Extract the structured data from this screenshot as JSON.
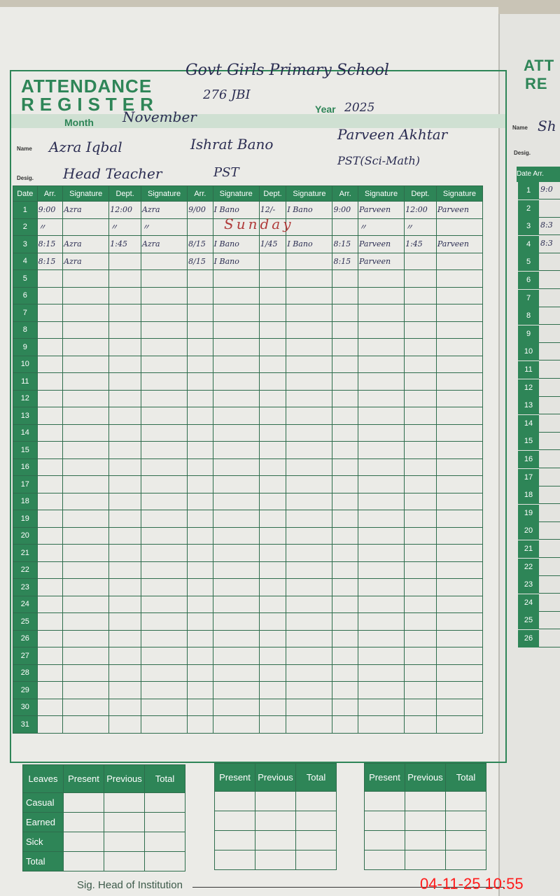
{
  "header": {
    "title_line1": "ATTENDANCE",
    "title_line2": "REGISTER",
    "school": "Govt Girls Primary School",
    "school_code": "276 JBI",
    "month_label": "Month",
    "month": "November",
    "year_label": "Year",
    "year": "2025",
    "name_label": "Name",
    "desig_label": "Desig."
  },
  "staff": [
    {
      "name": "Azra Iqbal",
      "designation": "Head Teacher"
    },
    {
      "name": "Ishrat Bano",
      "designation": "PST"
    },
    {
      "name": "Parveen Akhtar",
      "designation": "PST(Sci-Math)"
    }
  ],
  "columns": {
    "date": "Date",
    "arr": "Arr.",
    "signature": "Signature",
    "dept": "Dept."
  },
  "rows": [
    [
      "9:00",
      "Azra",
      "12:00",
      "Azra",
      "9/00",
      "I Bano",
      "12/-",
      "I Bano",
      "9:00",
      "Parveen",
      "12:00",
      "Parveen"
    ],
    [
      "〃",
      "",
      "〃",
      "〃",
      "",
      "",
      "",
      "",
      "",
      "〃",
      "〃",
      ""
    ],
    [
      "8:15",
      "Azra",
      "1:45",
      "Azra",
      "8/15",
      "I Bano",
      "1/45",
      "I Bano",
      "8:15",
      "Parveen",
      "1:45",
      "Parveen"
    ],
    [
      "8:15",
      "Azra",
      "",
      "",
      "8/15",
      "I Bano",
      "",
      "",
      "8:15",
      "Parveen",
      "",
      ""
    ]
  ],
  "row_count": 31,
  "sunday_note": "Sunday",
  "leaves": {
    "headers": [
      "Leaves",
      "Present",
      "Previous",
      "Total"
    ],
    "types": [
      "Casual",
      "Earned",
      "Sick",
      "Total"
    ]
  },
  "footer": {
    "signature_label": "Sig. Head of Institution",
    "timestamp": "04-11-25  10:55"
  },
  "next_page": {
    "title_line1": "ATT",
    "title_line2": "RE",
    "name_label": "Name",
    "name": "Sh",
    "desig_label": "Desig.",
    "date_label": "Date",
    "arr_label": "Arr.",
    "entries": [
      "9:0",
      "",
      "8:3",
      "8:3"
    ]
  },
  "colors": {
    "green": "#2e8557",
    "ink": "#2b2d52",
    "sunday": "#b03a3a",
    "timestamp": "#ff1a1a"
  }
}
